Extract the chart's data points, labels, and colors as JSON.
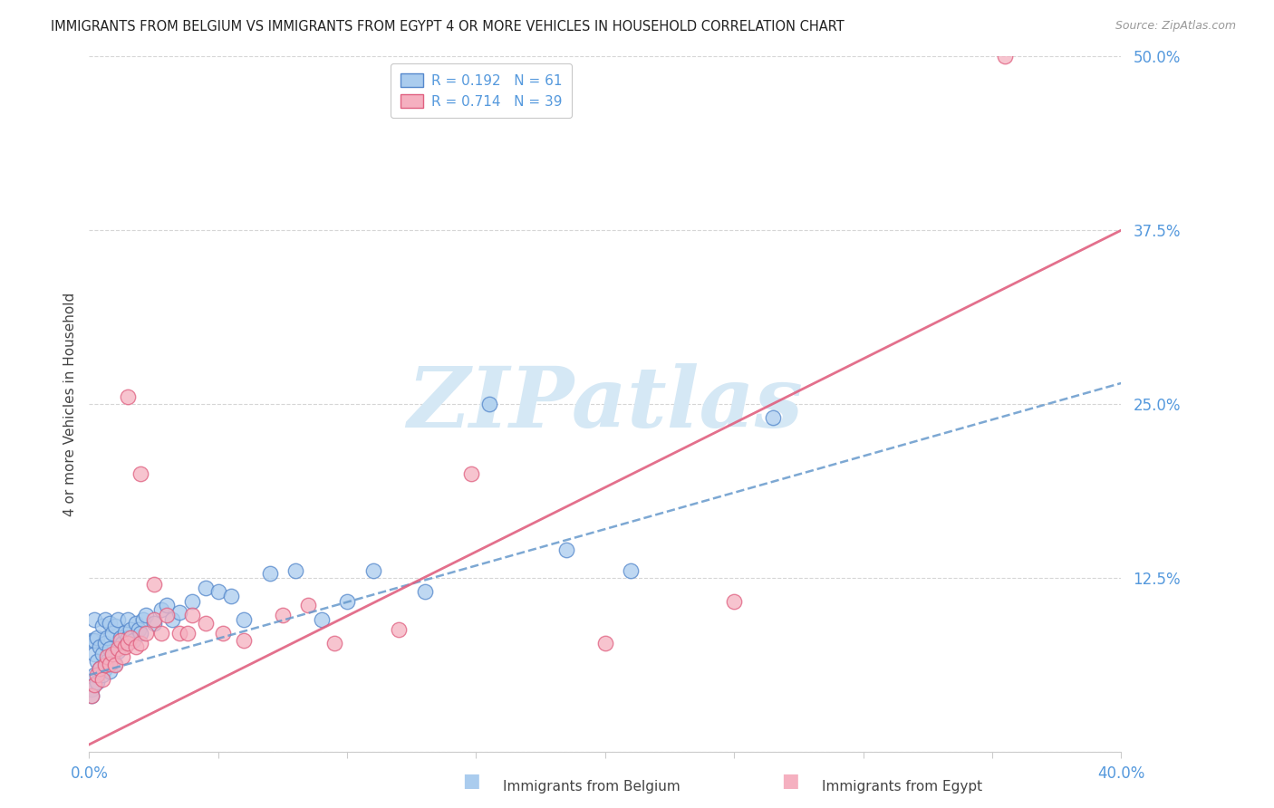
{
  "title": "IMMIGRANTS FROM BELGIUM VS IMMIGRANTS FROM EGYPT 4 OR MORE VEHICLES IN HOUSEHOLD CORRELATION CHART",
  "source": "Source: ZipAtlas.com",
  "ylabel": "4 or more Vehicles in Household",
  "legend_label1": "Immigrants from Belgium",
  "legend_label2": "Immigrants from Egypt",
  "r1": 0.192,
  "n1": 61,
  "r2": 0.714,
  "n2": 39,
  "color_belgium_fill": "#aaccee",
  "color_belgium_edge": "#5588cc",
  "color_egypt_fill": "#f5b0c0",
  "color_egypt_edge": "#e06080",
  "line_color_belgium": "#6699cc",
  "line_color_egypt": "#e06080",
  "xlim": [
    0.0,
    0.4
  ],
  "ylim": [
    0.0,
    0.5
  ],
  "xtick_positions": [
    0.0,
    0.05,
    0.1,
    0.15,
    0.2,
    0.25,
    0.3,
    0.35,
    0.4
  ],
  "xtick_labels": [
    "0.0%",
    "",
    "",
    "",
    "",
    "",
    "",
    "",
    "40.0%"
  ],
  "ytick_positions": [
    0.0,
    0.125,
    0.25,
    0.375,
    0.5
  ],
  "ytick_labels": [
    "",
    "12.5%",
    "25.0%",
    "37.5%",
    "50.0%"
  ],
  "background_color": "#ffffff",
  "grid_color": "#cccccc",
  "axis_tick_color": "#5599dd",
  "watermark_text": "ZIPatlas",
  "watermark_color": "#d5e8f5",
  "title_color": "#222222",
  "source_color": "#999999",
  "ylabel_color": "#444444",
  "bel_line_y0": 0.055,
  "bel_line_y1": 0.265,
  "egy_line_y0": 0.005,
  "egy_line_y1": 0.375,
  "bel_x": [
    0.001,
    0.001,
    0.001,
    0.002,
    0.002,
    0.002,
    0.002,
    0.003,
    0.003,
    0.003,
    0.004,
    0.004,
    0.005,
    0.005,
    0.005,
    0.006,
    0.006,
    0.006,
    0.007,
    0.007,
    0.008,
    0.008,
    0.008,
    0.009,
    0.009,
    0.01,
    0.01,
    0.011,
    0.011,
    0.012,
    0.013,
    0.014,
    0.015,
    0.015,
    0.016,
    0.017,
    0.018,
    0.019,
    0.02,
    0.021,
    0.022,
    0.025,
    0.028,
    0.03,
    0.032,
    0.035,
    0.04,
    0.045,
    0.05,
    0.055,
    0.06,
    0.07,
    0.08,
    0.09,
    0.1,
    0.11,
    0.13,
    0.155,
    0.185,
    0.21,
    0.265
  ],
  "bel_y": [
    0.045,
    0.08,
    0.04,
    0.055,
    0.07,
    0.08,
    0.095,
    0.05,
    0.065,
    0.082,
    0.06,
    0.075,
    0.055,
    0.07,
    0.09,
    0.06,
    0.078,
    0.095,
    0.065,
    0.082,
    0.058,
    0.074,
    0.092,
    0.068,
    0.085,
    0.063,
    0.09,
    0.072,
    0.095,
    0.082,
    0.078,
    0.086,
    0.082,
    0.095,
    0.088,
    0.08,
    0.092,
    0.088,
    0.085,
    0.095,
    0.098,
    0.092,
    0.102,
    0.105,
    0.095,
    0.1,
    0.108,
    0.118,
    0.115,
    0.112,
    0.095,
    0.128,
    0.13,
    0.095,
    0.108,
    0.13,
    0.115,
    0.25,
    0.145,
    0.13,
    0.24
  ],
  "egy_x": [
    0.001,
    0.002,
    0.003,
    0.004,
    0.005,
    0.006,
    0.007,
    0.008,
    0.009,
    0.01,
    0.011,
    0.012,
    0.013,
    0.014,
    0.015,
    0.016,
    0.018,
    0.02,
    0.022,
    0.025,
    0.028,
    0.03,
    0.035,
    0.038,
    0.04,
    0.045,
    0.052,
    0.06,
    0.075,
    0.085,
    0.095,
    0.12,
    0.148,
    0.2,
    0.25,
    0.355,
    0.02,
    0.015,
    0.025
  ],
  "egy_y": [
    0.04,
    0.048,
    0.055,
    0.06,
    0.052,
    0.062,
    0.068,
    0.063,
    0.07,
    0.062,
    0.074,
    0.08,
    0.068,
    0.075,
    0.078,
    0.082,
    0.075,
    0.078,
    0.085,
    0.095,
    0.085,
    0.098,
    0.085,
    0.085,
    0.098,
    0.092,
    0.085,
    0.08,
    0.098,
    0.105,
    0.078,
    0.088,
    0.2,
    0.078,
    0.108,
    0.5,
    0.2,
    0.255,
    0.12
  ]
}
